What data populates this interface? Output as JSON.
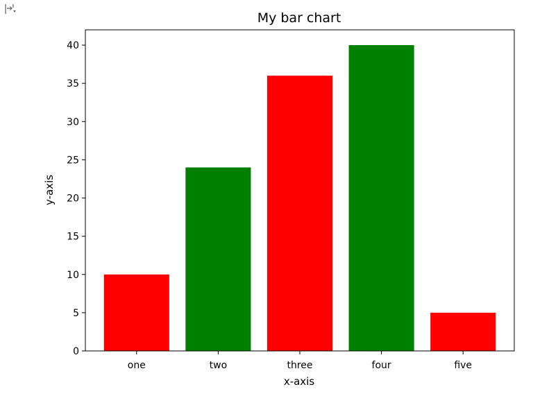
{
  "toolbar": {
    "icon": "output-toggle-icon"
  },
  "chart_data": {
    "type": "bar",
    "title": "My bar chart",
    "xlabel": "x-axis",
    "ylabel": "y-axis",
    "categories": [
      "one",
      "two",
      "three",
      "four",
      "five"
    ],
    "values": [
      10,
      24,
      36,
      40,
      5
    ],
    "colors": [
      "#ff0000",
      "#008000",
      "#ff0000",
      "#008000",
      "#ff0000"
    ],
    "ylim": [
      0,
      42
    ],
    "yticks": [
      0,
      5,
      10,
      15,
      20,
      25,
      30,
      35,
      40
    ],
    "grid": false,
    "legend": false
  }
}
